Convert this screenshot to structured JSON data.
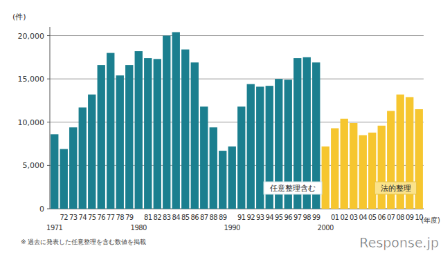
{
  "chart_data": {
    "type": "bar",
    "y_label": "(件)",
    "x_label": "(年度)",
    "footnote": "※ 過去に発表した任意整理を含む数値を掲載",
    "watermark": "Response.jp",
    "categories": [
      "1971",
      "72",
      "73",
      "74",
      "75",
      "76",
      "77",
      "78",
      "79",
      "1980",
      "81",
      "82",
      "83",
      "84",
      "85",
      "86",
      "87",
      "88",
      "89",
      "1990",
      "91",
      "92",
      "93",
      "94",
      "95",
      "96",
      "97",
      "98",
      "99",
      "2000",
      "01",
      "02",
      "03",
      "04",
      "05",
      "06",
      "07",
      "08",
      "09",
      "10"
    ],
    "series": [
      {
        "name": "任意整理含む",
        "color": "#1b7f8f",
        "values": [
          8600,
          6900,
          9400,
          11700,
          13200,
          16600,
          18000,
          15400,
          16600,
          18200,
          17400,
          17300,
          20000,
          20400,
          18400,
          16900,
          11800,
          9400,
          6700,
          7200,
          11800,
          14400,
          14100,
          14200,
          15000,
          14900,
          17400,
          17500,
          16900,
          null,
          null,
          null,
          null,
          null,
          null,
          null,
          null,
          null,
          null,
          null
        ]
      },
      {
        "name": "法的整理",
        "color": "#f6c62f",
        "values": [
          null,
          null,
          null,
          null,
          null,
          null,
          null,
          null,
          null,
          null,
          null,
          null,
          null,
          null,
          null,
          null,
          null,
          null,
          null,
          null,
          null,
          null,
          null,
          null,
          null,
          null,
          null,
          null,
          null,
          7200,
          9300,
          10400,
          9900,
          8500,
          8800,
          9600,
          11300,
          13200,
          12900,
          11500
        ]
      }
    ],
    "ylim": [
      0,
      21000
    ],
    "yticks": [
      0,
      {
        "value": 5000,
        "label": "5,000"
      },
      {
        "value": 10000,
        "label": "10,000"
      },
      {
        "value": 15000,
        "label": "15,000"
      },
      {
        "value": 20000,
        "label": "20,000"
      }
    ],
    "grid": true
  }
}
